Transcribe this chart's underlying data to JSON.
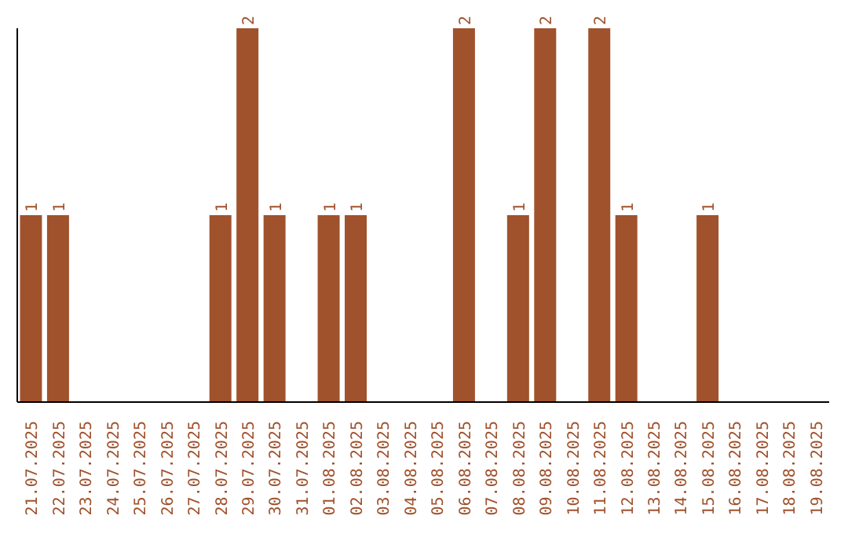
{
  "chart_data": {
    "type": "bar",
    "categories": [
      "21.07.2025",
      "22.07.2025",
      "23.07.2025",
      "24.07.2025",
      "25.07.2025",
      "26.07.2025",
      "27.07.2025",
      "28.07.2025",
      "29.07.2025",
      "30.07.2025",
      "31.07.2025",
      "01.08.2025",
      "02.08.2025",
      "03.08.2025",
      "04.08.2025",
      "05.08.2025",
      "06.08.2025",
      "07.08.2025",
      "08.08.2025",
      "09.08.2025",
      "10.08.2025",
      "11.08.2025",
      "12.08.2025",
      "13.08.2025",
      "14.08.2025",
      "15.08.2025",
      "16.08.2025",
      "17.08.2025",
      "18.08.2025",
      "19.08.2025"
    ],
    "values": [
      1,
      1,
      0,
      0,
      0,
      0,
      0,
      1,
      2,
      1,
      0,
      1,
      1,
      0,
      0,
      0,
      2,
      0,
      1,
      2,
      0,
      2,
      1,
      0,
      0,
      1,
      0,
      0,
      0,
      0
    ],
    "value_labels": [
      "1",
      "1",
      null,
      null,
      null,
      null,
      null,
      "1",
      "2",
      "1",
      null,
      "1",
      "1",
      null,
      null,
      null,
      "2",
      null,
      "1",
      "2",
      null,
      "2",
      "1",
      null,
      null,
      "1",
      null,
      null,
      null,
      null
    ],
    "color": "#a0522d",
    "tick_labels": "x",
    "grid": false
  }
}
